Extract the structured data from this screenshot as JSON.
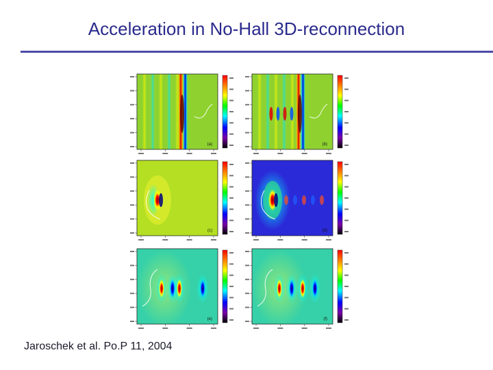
{
  "slide": {
    "title": "Acceleration in No-Hall 3D-reconnection",
    "citation": "Jaroschek et al. Po.P 11, 2004"
  },
  "figure": {
    "panels": [
      {
        "id": "a",
        "label": "(a)",
        "background": "#8fd230",
        "structure": "vertical-bands"
      },
      {
        "id": "b",
        "label": "(b)",
        "background": "#8fd230",
        "structure": "vertical-bands"
      },
      {
        "id": "c",
        "label": "(c)",
        "background": "#b4df22",
        "structure": "compact-source"
      },
      {
        "id": "d",
        "label": "(d)",
        "background": "#2a2ad8",
        "structure": "compact-source"
      },
      {
        "id": "e",
        "label": "(e)",
        "background": "#36d1a8",
        "structure": "wave-packets"
      },
      {
        "id": "f",
        "label": "(f)",
        "background": "#36d1a8",
        "structure": "wave-packets"
      }
    ],
    "colorbar_stops": [
      "#000000",
      "#7a00a8",
      "#0000ff",
      "#00ffff",
      "#00ff00",
      "#ffff00",
      "#ff8000",
      "#ff0000"
    ]
  }
}
